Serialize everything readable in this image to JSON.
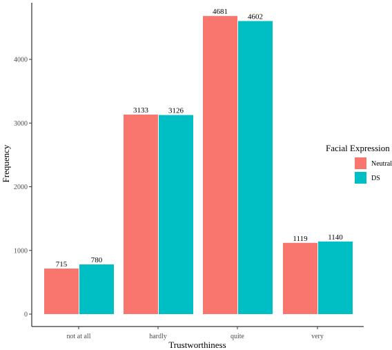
{
  "chart_data": {
    "type": "bar",
    "categories": [
      "not at all",
      "hardly",
      "quite",
      "very"
    ],
    "series": [
      {
        "name": "Neutral",
        "values": [
          715,
          3133,
          4681,
          1119
        ],
        "color": "#F8766D"
      },
      {
        "name": "DS",
        "values": [
          780,
          3126,
          4602,
          1140
        ],
        "color": "#00BFC4"
      }
    ],
    "title": "",
    "xlabel": "Trustworthiness",
    "ylabel": "Frequency",
    "yticks": [
      0,
      1000,
      2000,
      3000,
      4000
    ],
    "ylim": [
      0,
      4900
    ],
    "grid": false,
    "legend": {
      "title": "Facial Expression",
      "position": "right"
    }
  }
}
